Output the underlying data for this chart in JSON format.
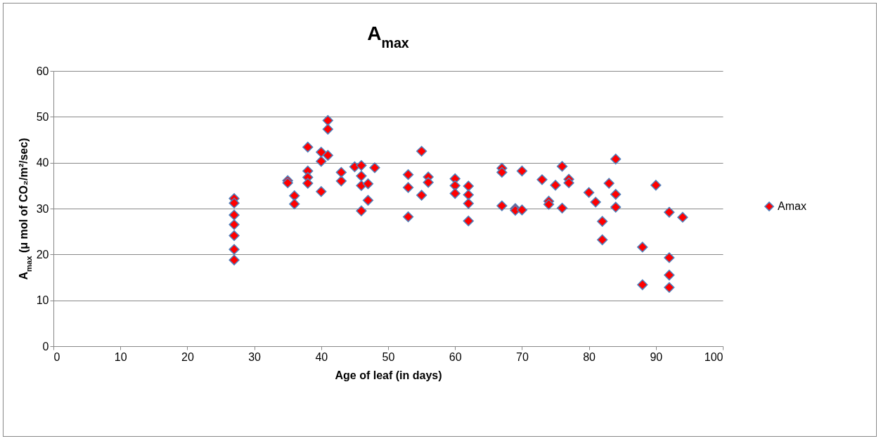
{
  "chart_data": {
    "type": "scatter",
    "title": "A$_{max}$",
    "xlabel": "Age of leaf (in days)",
    "ylabel": "A$_{max}$ (μ mol of CO₂/m²/sec)",
    "xlim": [
      0,
      100
    ],
    "xticks": [
      0,
      10,
      20,
      30,
      40,
      50,
      60,
      70,
      80,
      90,
      100
    ],
    "ylim": [
      0,
      60
    ],
    "yticks": [
      0,
      10,
      20,
      30,
      40,
      50,
      60
    ],
    "grid": "y",
    "legend": "right",
    "marker": "diamond",
    "series": [
      {
        "name": "Amax",
        "color": "#ff0000",
        "x": [
          27,
          27,
          27,
          27,
          27,
          27,
          27,
          35,
          35,
          36,
          36,
          38,
          38,
          38,
          38,
          40,
          40,
          40,
          41,
          41,
          41,
          43,
          43,
          45,
          46,
          46,
          46,
          46,
          47,
          47,
          48,
          53,
          53,
          53,
          55,
          55,
          56,
          56,
          60,
          60,
          60,
          62,
          62,
          62,
          62,
          67,
          67,
          67,
          69,
          69,
          70,
          70,
          73,
          74,
          74,
          75,
          76,
          76,
          77,
          77,
          80,
          81,
          82,
          82,
          83,
          84,
          84,
          84,
          88,
          88,
          90,
          92,
          92,
          92,
          92,
          94
        ],
        "values": [
          32.2,
          31.2,
          28.6,
          26.5,
          24.1,
          21.1,
          18.8,
          36.1,
          35.6,
          32.8,
          31.0,
          43.4,
          38.2,
          36.8,
          35.5,
          42.3,
          40.3,
          33.7,
          49.2,
          47.3,
          41.6,
          37.9,
          36.0,
          39.1,
          39.4,
          37.1,
          35.0,
          29.5,
          35.4,
          31.8,
          38.9,
          37.4,
          34.6,
          28.2,
          42.5,
          32.9,
          36.9,
          35.7,
          36.5,
          35.0,
          33.3,
          34.9,
          33.0,
          31.1,
          27.3,
          38.8,
          37.9,
          30.6,
          30.0,
          29.6,
          38.2,
          29.7,
          36.3,
          31.6,
          30.9,
          35.1,
          39.2,
          30.1,
          36.4,
          35.6,
          33.5,
          31.4,
          27.2,
          23.2,
          35.5,
          40.8,
          33.1,
          30.3,
          21.6,
          13.4,
          35.1,
          29.2,
          19.3,
          15.5,
          12.8,
          28.1
        ]
      }
    ]
  }
}
